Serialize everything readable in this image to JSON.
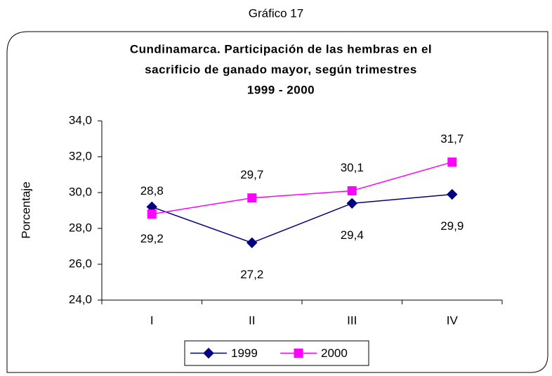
{
  "chart_data": {
    "type": "line",
    "caption": "Gráfico 17",
    "title": [
      "Cundinamarca. Participación de las hembras en el",
      "sacrificio de ganado mayor, según trimestres",
      "1999 - 2000"
    ],
    "ylabel": "Porcentaje",
    "categories": [
      "I",
      "II",
      "III",
      "IV"
    ],
    "series": [
      {
        "name": "1999",
        "color": "#000080",
        "marker": "diamond",
        "values": [
          29.2,
          27.2,
          29.4,
          29.9
        ],
        "value_labels": [
          "29,2",
          "27,2",
          "29,4",
          "29,9"
        ]
      },
      {
        "name": "2000",
        "color": "#ff00ff",
        "marker": "square",
        "values": [
          28.8,
          29.7,
          30.1,
          31.7
        ],
        "value_labels": [
          "28,8",
          "29,7",
          "30,1",
          "31,7"
        ]
      }
    ],
    "ylim": [
      24,
      34
    ],
    "yticks": [
      {
        "value": 24,
        "label": "24,0"
      },
      {
        "value": 26,
        "label": "26,0"
      },
      {
        "value": 28,
        "label": "28,0"
      },
      {
        "value": 30,
        "label": "30,0"
      },
      {
        "value": 32,
        "label": "32,0"
      },
      {
        "value": 34,
        "label": "34,0"
      }
    ],
    "legend": "bottom"
  }
}
